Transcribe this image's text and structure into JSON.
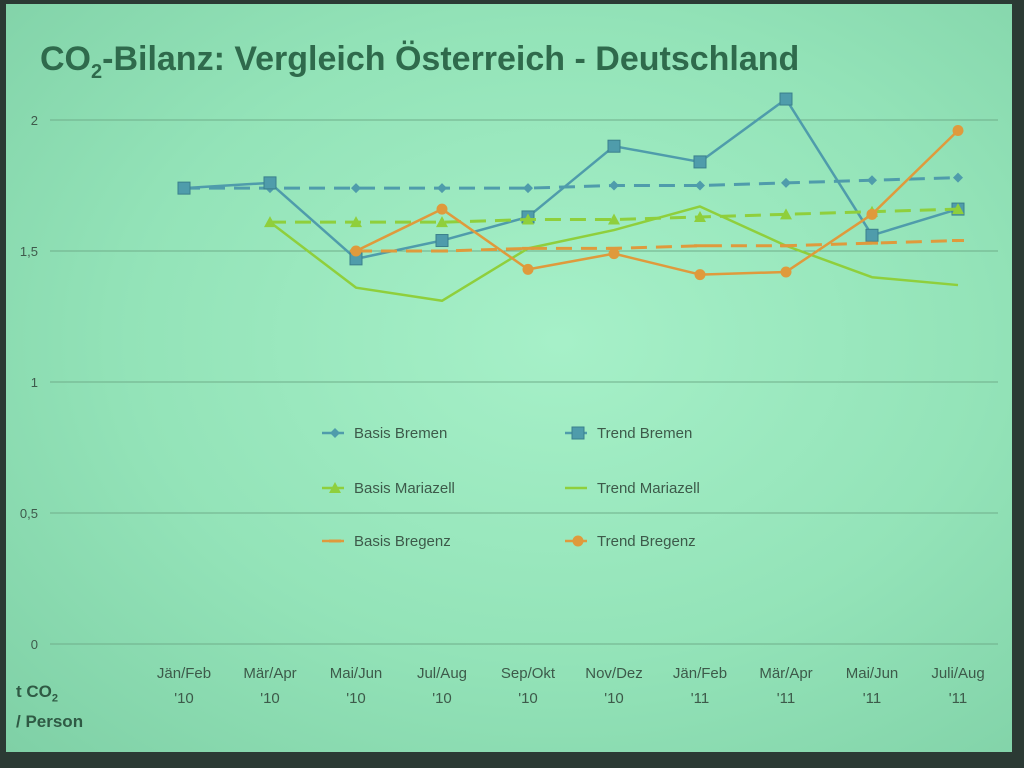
{
  "title_main": "CO",
  "title_sub": "2",
  "title_rest": "-Bilanz: Vergleich Österreich - Deutschland",
  "y_label_line1_main": "t CO",
  "y_label_line1_sub": "2",
  "y_label_line2": "/ Person",
  "colors": {
    "bremen": "#4f9cab",
    "mariazell": "#8fcf3c",
    "bregenz": "#df9a3c",
    "grid": "#6fae8a"
  },
  "chart_data": {
    "type": "line",
    "categories": [
      [
        "Jän/Feb",
        "'10"
      ],
      [
        "Mär/Apr",
        "'10"
      ],
      [
        "Mai/Jun",
        "'10"
      ],
      [
        "Jul/Aug",
        "'10"
      ],
      [
        "Sep/Okt",
        "'10"
      ],
      [
        "Nov/Dez",
        "'10"
      ],
      [
        "Jän/Feb",
        "'11"
      ],
      [
        "Mär/Apr",
        "'11"
      ],
      [
        "Mai/Jun",
        "'11"
      ],
      [
        "Juli/Aug",
        "'11"
      ]
    ],
    "ylim": [
      0,
      2
    ],
    "yticks": [
      "0",
      "0,5",
      "1",
      "1,5",
      "2"
    ],
    "ytick_values": [
      0,
      0.5,
      1,
      1.5,
      2
    ],
    "legend_placement": "center",
    "series": [
      {
        "name": "Basis Bremen",
        "color": "bremen",
        "dash": true,
        "marker": "diamond",
        "values": [
          1.74,
          1.74,
          1.74,
          1.74,
          1.74,
          1.75,
          1.75,
          1.76,
          1.77,
          1.78
        ]
      },
      {
        "name": "Trend Bremen",
        "color": "bremen",
        "dash": false,
        "marker": "square",
        "values": [
          1.74,
          1.76,
          1.47,
          1.54,
          1.63,
          1.9,
          1.84,
          2.08,
          1.56,
          1.66
        ]
      },
      {
        "name": "Basis Mariazell",
        "color": "mariazell",
        "dash": true,
        "marker": "triangle",
        "values": [
          null,
          1.61,
          1.61,
          1.61,
          1.62,
          1.62,
          1.63,
          1.64,
          1.65,
          1.66
        ]
      },
      {
        "name": "Trend Mariazell",
        "color": "mariazell",
        "dash": false,
        "marker": "none",
        "values": [
          null,
          1.61,
          1.36,
          1.31,
          1.51,
          1.58,
          1.67,
          1.52,
          1.4,
          1.37
        ]
      },
      {
        "name": "Basis Bregenz",
        "color": "bregenz",
        "dash": true,
        "marker": "dash",
        "values": [
          null,
          null,
          1.5,
          1.5,
          1.51,
          1.51,
          1.52,
          1.52,
          1.53,
          1.54
        ]
      },
      {
        "name": "Trend Bregenz",
        "color": "bregenz",
        "dash": false,
        "marker": "circle",
        "values": [
          null,
          null,
          1.5,
          1.66,
          1.43,
          1.49,
          1.41,
          1.42,
          1.64,
          1.96
        ]
      }
    ]
  }
}
